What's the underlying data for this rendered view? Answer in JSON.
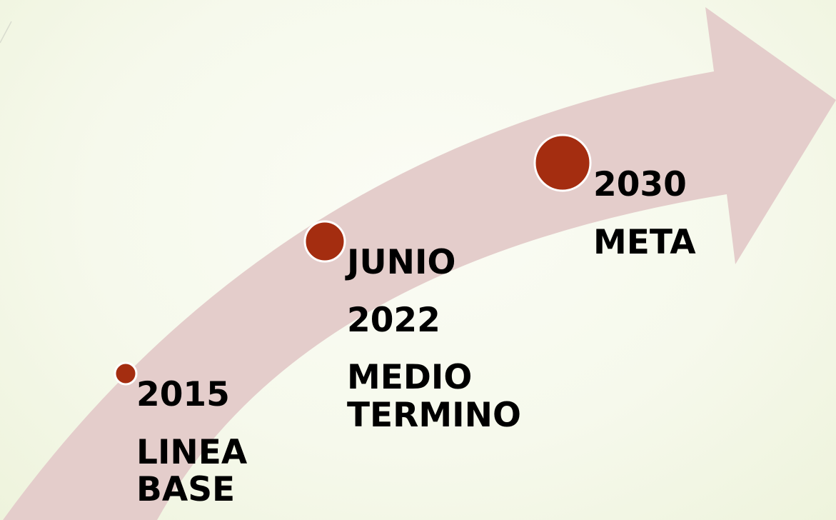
{
  "colors": {
    "arrow": "#e4cdcb",
    "marker": "#a42d10",
    "marker_outline": "#ffffff",
    "text": "#000000"
  },
  "milestones": [
    {
      "line1": "2015",
      "line2": "LINEA",
      "line3": "BASE",
      "line4": ""
    },
    {
      "line1": "JUNIO",
      "line2": "2022",
      "line3": "MEDIO",
      "line4": "TERMINO"
    },
    {
      "line1": "2030",
      "line2": "META",
      "line3": "",
      "line4": ""
    }
  ]
}
